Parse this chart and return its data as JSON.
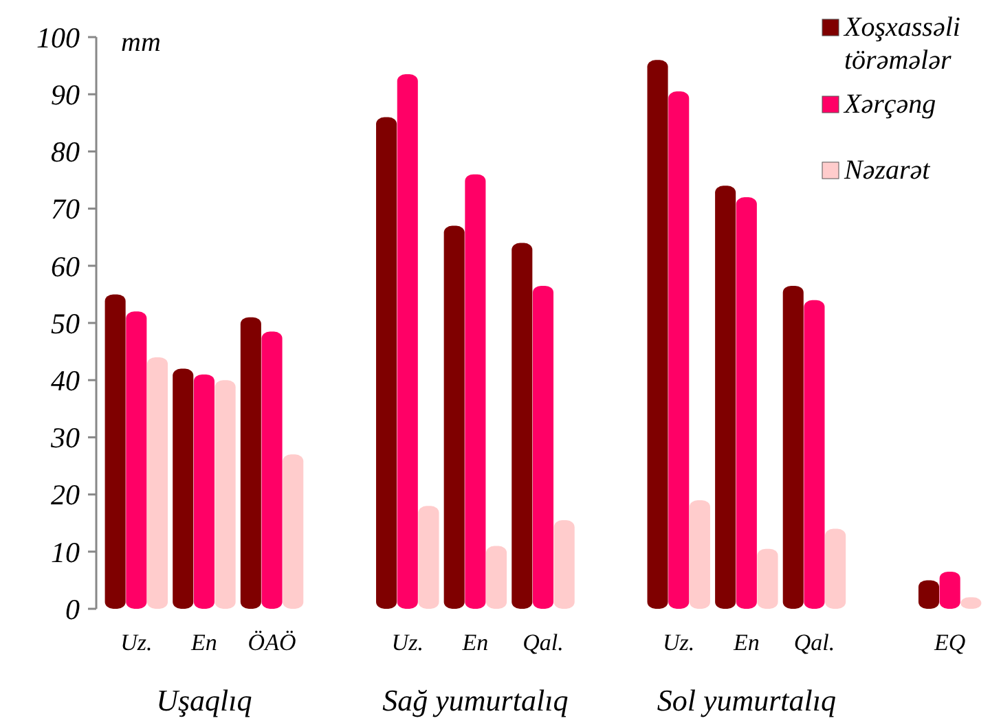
{
  "chart_data": {
    "type": "bar",
    "ylabel": "mm",
    "categories": [
      "Uz.",
      "En",
      "ÖAÖ",
      null,
      "Uz.",
      "En",
      "Qal.",
      null,
      "Uz.",
      "En",
      "Qal.",
      null,
      "EQ"
    ],
    "series": [
      {
        "name": "Xoşxassəli törəmələr",
        "color": "#7f0000",
        "values": [
          55,
          42,
          51,
          null,
          86,
          67,
          64,
          null,
          96,
          74,
          56.5,
          null,
          5
        ]
      },
      {
        "name": "Xərçəng",
        "color": "#ff0066",
        "values": [
          52,
          41,
          48.5,
          null,
          93.5,
          76,
          56.5,
          null,
          90.5,
          72,
          54,
          null,
          6.5
        ]
      },
      {
        "name": "Nəzarət",
        "color": "#ffcccc",
        "values": [
          44,
          40,
          27,
          null,
          18,
          11,
          15.5,
          null,
          19,
          10.5,
          14,
          null,
          2
        ]
      }
    ],
    "ylim": [
      0,
      100
    ],
    "yticks": [
      0,
      10,
      20,
      30,
      40,
      50,
      60,
      70,
      80,
      90,
      100
    ],
    "grid": false,
    "legend": "top right",
    "annotations": [
      "Uşaqlıq",
      "Sağ yumurtalıq",
      "Sol yumurtalıq"
    ]
  }
}
